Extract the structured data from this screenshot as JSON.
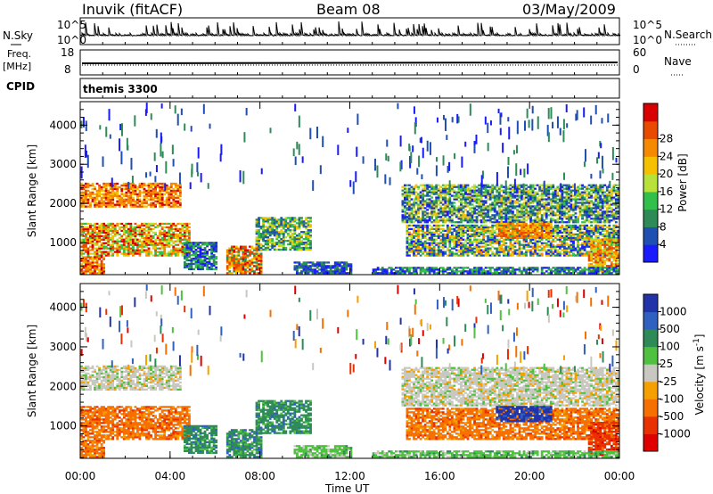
{
  "header": {
    "station": "Inuvik (fitACF)",
    "beam": "Beam 08",
    "date": "03/May/2009"
  },
  "panels": {
    "noise": {
      "left_label": "N.Sky",
      "right_label": "N.Search",
      "left_ticks": [
        "10^5",
        "10^0"
      ],
      "right_ticks": [
        "10^5",
        "10^0"
      ]
    },
    "freq": {
      "left_label_top": "Freq.",
      "left_label_unit": "[MHz]",
      "left_ticks": [
        "18",
        "8"
      ],
      "right_label": "Nave",
      "right_ticks": [
        "60",
        "0"
      ]
    },
    "cpid": {
      "label": "CPID",
      "program": "themis 3300"
    },
    "power": {
      "ylabel": "Slant Range [km]",
      "cbar_label": "Power [dB]"
    },
    "velocity": {
      "ylabel": "Slant Range [km]",
      "cbar_label": "Velocity [m s",
      "cbar_label_sup": "-1",
      "cbar_label_end": "]"
    }
  },
  "xaxis": {
    "label": "Time UT",
    "ticks": [
      "00:00",
      "04:00",
      "08:00",
      "12:00",
      "16:00",
      "20:00",
      "00:00"
    ]
  },
  "chart_data": [
    {
      "type": "heatmap",
      "title": "Power",
      "xlabel": "Time UT",
      "ylabel": "Slant Range [km]",
      "xlim": [
        0,
        24
      ],
      "ylim": [
        180,
        4600
      ],
      "y_ticks": [
        "1000",
        "2000",
        "3000",
        "4000"
      ],
      "colorbar": {
        "label": "Power [dB]",
        "ticks": [
          "4",
          "8",
          "12",
          "16",
          "20",
          "24",
          "28"
        ],
        "colors": [
          "#1a1aff",
          "#1f4fb0",
          "#2e8b57",
          "#33c04a",
          "#b8e23a",
          "#f5c000",
          "#f58a00",
          "#e84a00",
          "#d80000"
        ]
      }
    },
    {
      "type": "heatmap",
      "title": "Velocity",
      "xlabel": "Time UT",
      "ylabel": "Slant Range [km]",
      "xlim": [
        0,
        24
      ],
      "ylim": [
        180,
        4600
      ],
      "y_ticks": [
        "1000",
        "2000",
        "3000",
        "4000"
      ],
      "colorbar": {
        "label": "Velocity [m s-1]",
        "ticks": [
          "1000",
          "500",
          "100",
          "25",
          "-25",
          "-100",
          "-500",
          "-1000"
        ],
        "colors": [
          "#2233aa",
          "#3060c0",
          "#2e8b57",
          "#50c040",
          "#c8c8c0",
          "#f5a000",
          "#f57000",
          "#e83000",
          "#e00000"
        ]
      }
    }
  ]
}
